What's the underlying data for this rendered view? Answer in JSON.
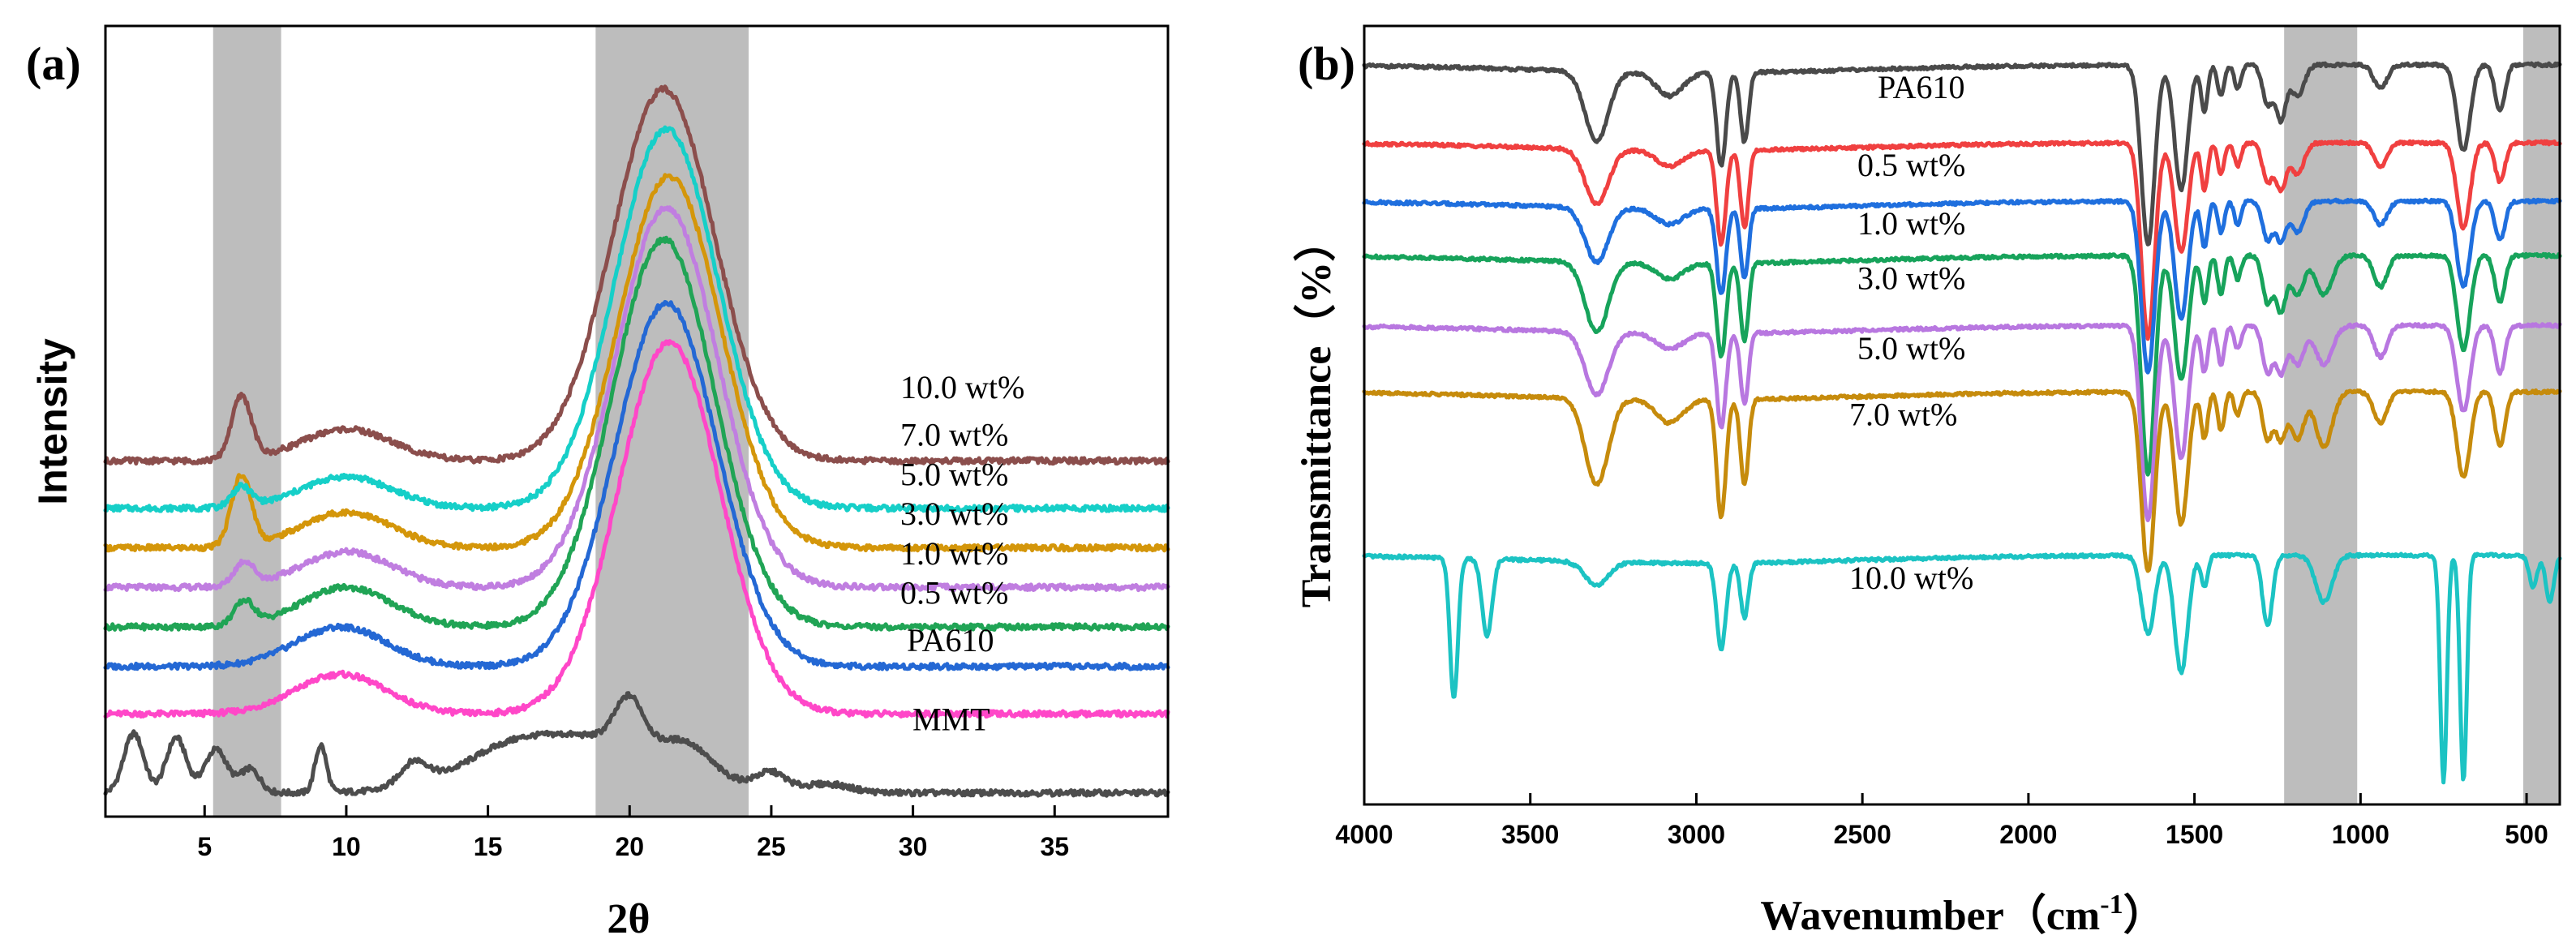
{
  "chart_data": [
    {
      "panel": "(a)",
      "type": "line",
      "title": "",
      "xlabel": "2θ",
      "ylabel": "Intensity",
      "xlim": [
        1.5,
        39
      ],
      "x_ticks": [
        5,
        10,
        15,
        20,
        25,
        30,
        35
      ],
      "y_ticks": [],
      "shaded_regions": [
        [
          5.3,
          7.7
        ],
        [
          18.8,
          24.2
        ]
      ],
      "series": [
        {
          "name": "MMT",
          "color": "#4d4d4d",
          "baseline": 0.03,
          "peaks": [
            [
              2.5,
              0.075,
              0.35
            ],
            [
              4.0,
              0.07,
              0.35
            ],
            [
              5.4,
              0.055,
              0.4
            ],
            [
              6.6,
              0.03,
              0.35
            ],
            [
              9.1,
              0.06,
              0.2
            ],
            [
              12.4,
              0.03,
              0.5
            ],
            [
              15.5,
              0.02,
              1.5
            ],
            [
              18.5,
              0.07,
              3.0
            ],
            [
              20.0,
              0.06,
              0.5
            ],
            [
              22.0,
              0.03,
              0.8
            ],
            [
              25.0,
              0.02,
              0.5
            ],
            [
              27.0,
              0.01,
              0.8
            ]
          ]
        },
        {
          "name": "PA610",
          "color": "#ff47c8",
          "baseline": 0.13,
          "peaks": [
            [
              9.8,
              0.05,
              1.6
            ],
            [
              21.4,
              0.47,
              1.8
            ]
          ]
        },
        {
          "name": "0.5 wt%",
          "color": "#2468d4",
          "baseline": 0.19,
          "peaks": [
            [
              9.8,
              0.05,
              1.6
            ],
            [
              21.3,
              0.46,
              1.8
            ]
          ]
        },
        {
          "name": "1.0 wt%",
          "color": "#20a455",
          "baseline": 0.24,
          "peaks": [
            [
              6.4,
              0.03,
              0.35
            ],
            [
              10.0,
              0.05,
              1.6
            ],
            [
              21.2,
              0.49,
              1.8
            ]
          ]
        },
        {
          "name": "3.0 wt%",
          "color": "#c07ee0",
          "baseline": 0.29,
          "peaks": [
            [
              6.4,
              0.03,
              0.35
            ],
            [
              10.0,
              0.045,
              1.6
            ],
            [
              21.3,
              0.48,
              1.8
            ]
          ]
        },
        {
          "name": "5.0 wt%",
          "color": "#d4960a",
          "baseline": 0.34,
          "peaks": [
            [
              6.3,
              0.09,
              0.35
            ],
            [
              10.0,
              0.045,
              1.6
            ],
            [
              21.4,
              0.47,
              1.8
            ]
          ]
        },
        {
          "name": "7.0 wt%",
          "color": "#16cfc8",
          "baseline": 0.39,
          "peaks": [
            [
              6.3,
              0.025,
              0.35
            ],
            [
              10.0,
              0.04,
              1.6
            ],
            [
              21.3,
              0.48,
              1.8
            ]
          ]
        },
        {
          "name": "10.0 wt%",
          "color": "#8b4e4c",
          "baseline": 0.45,
          "peaks": [
            [
              6.3,
              0.08,
              0.35
            ],
            [
              10.0,
              0.04,
              1.6
            ],
            [
              21.2,
              0.47,
              1.8
            ]
          ]
        }
      ]
    },
    {
      "panel": "(b)",
      "type": "line",
      "title": "",
      "xlabel": "Wavenumber（cm",
      "xlabel_sup": "-1",
      "xlabel_close": "）",
      "ylabel": "Transmittance（%）",
      "xlim": [
        4000,
        400
      ],
      "x_ticks": [
        4000,
        3500,
        3000,
        2500,
        2000,
        1500,
        1000,
        500
      ],
      "y_ticks": [],
      "shaded_regions": [
        [
          1230,
          1010
        ],
        [
          510,
          400
        ]
      ],
      "series": [
        {
          "name": "PA610",
          "color": "#4a4a4a",
          "offset": 0.95,
          "dips": [
            [
              3300,
              0.09,
              35
            ],
            [
              3080,
              0.03,
              40
            ],
            [
              2925,
              0.12,
              14
            ],
            [
              2855,
              0.09,
              12
            ],
            [
              1640,
              0.23,
              20
            ],
            [
              1540,
              0.16,
              20
            ],
            [
              1470,
              0.06,
              10
            ],
            [
              1420,
              0.04,
              10
            ],
            [
              1370,
              0.03,
              10
            ],
            [
              1280,
              0.05,
              15
            ],
            [
              1240,
              0.07,
              15
            ],
            [
              1190,
              0.04,
              20
            ],
            [
              940,
              0.03,
              20
            ],
            [
              690,
              0.11,
              20
            ],
            [
              580,
              0.06,
              15
            ]
          ]
        },
        {
          "name": "0.5 wt%",
          "color": "#f04040",
          "offset": 0.85,
          "dips": [
            [
              3300,
              0.07,
              35
            ],
            [
              3080,
              0.02,
              40
            ],
            [
              2925,
              0.12,
              14
            ],
            [
              2855,
              0.1,
              12
            ],
            [
              1640,
              0.25,
              20
            ],
            [
              1540,
              0.14,
              20
            ],
            [
              1470,
              0.06,
              10
            ],
            [
              1420,
              0.04,
              10
            ],
            [
              1370,
              0.03,
              10
            ],
            [
              1280,
              0.05,
              15
            ],
            [
              1240,
              0.06,
              15
            ],
            [
              1190,
              0.04,
              20
            ],
            [
              940,
              0.03,
              20
            ],
            [
              690,
              0.11,
              20
            ],
            [
              580,
              0.05,
              15
            ]
          ]
        },
        {
          "name": "1.0 wt%",
          "color": "#1f6fde",
          "offset": 0.775,
          "dips": [
            [
              3300,
              0.07,
              35
            ],
            [
              3080,
              0.02,
              40
            ],
            [
              2925,
              0.11,
              14
            ],
            [
              2855,
              0.09,
              12
            ],
            [
              1640,
              0.22,
              20
            ],
            [
              1540,
              0.15,
              20
            ],
            [
              1470,
              0.06,
              10
            ],
            [
              1420,
              0.04,
              10
            ],
            [
              1370,
              0.03,
              10
            ],
            [
              1280,
              0.05,
              15
            ],
            [
              1240,
              0.05,
              15
            ],
            [
              1190,
              0.04,
              20
            ],
            [
              940,
              0.03,
              20
            ],
            [
              690,
              0.11,
              20
            ],
            [
              580,
              0.05,
              15
            ]
          ]
        },
        {
          "name": "3.0 wt%",
          "color": "#17a35b",
          "offset": 0.705,
          "dips": [
            [
              3300,
              0.09,
              35
            ],
            [
              3080,
              0.02,
              40
            ],
            [
              2925,
              0.12,
              14
            ],
            [
              2855,
              0.1,
              12
            ],
            [
              1640,
              0.28,
              20
            ],
            [
              1540,
              0.16,
              20
            ],
            [
              1470,
              0.06,
              10
            ],
            [
              1420,
              0.05,
              10
            ],
            [
              1370,
              0.03,
              10
            ],
            [
              1280,
              0.06,
              15
            ],
            [
              1240,
              0.07,
              15
            ],
            [
              1190,
              0.05,
              20
            ],
            [
              1110,
              0.05,
              25
            ],
            [
              940,
              0.04,
              20
            ],
            [
              690,
              0.12,
              20
            ],
            [
              580,
              0.06,
              15
            ]
          ]
        },
        {
          "name": "5.0 wt%",
          "color": "#b877e0",
          "offset": 0.615,
          "dips": [
            [
              3300,
              0.08,
              35
            ],
            [
              3080,
              0.02,
              40
            ],
            [
              2925,
              0.12,
              14
            ],
            [
              2855,
              0.09,
              12
            ],
            [
              1640,
              0.25,
              20
            ],
            [
              1540,
              0.17,
              20
            ],
            [
              1470,
              0.06,
              10
            ],
            [
              1420,
              0.05,
              10
            ],
            [
              1370,
              0.03,
              10
            ],
            [
              1280,
              0.06,
              15
            ],
            [
              1240,
              0.06,
              15
            ],
            [
              1190,
              0.05,
              20
            ],
            [
              1110,
              0.05,
              25
            ],
            [
              940,
              0.04,
              20
            ],
            [
              690,
              0.11,
              20
            ],
            [
              580,
              0.06,
              15
            ]
          ]
        },
        {
          "name": "7.0 wt%",
          "color": "#c68b0c",
          "offset": 0.53,
          "dips": [
            [
              3300,
              0.11,
              35
            ],
            [
              3080,
              0.03,
              40
            ],
            [
              2925,
              0.15,
              14
            ],
            [
              2855,
              0.11,
              12
            ],
            [
              1640,
              0.23,
              20
            ],
            [
              1540,
              0.17,
              20
            ],
            [
              1470,
              0.06,
              10
            ],
            [
              1420,
              0.05,
              10
            ],
            [
              1370,
              0.03,
              10
            ],
            [
              1280,
              0.06,
              15
            ],
            [
              1240,
              0.06,
              15
            ],
            [
              1190,
              0.06,
              20
            ],
            [
              1110,
              0.07,
              25
            ],
            [
              940,
              0.04,
              20
            ],
            [
              690,
              0.11,
              20
            ],
            [
              580,
              0.07,
              15
            ]
          ]
        },
        {
          "name": "10.0 wt%",
          "color": "#1cc3c3",
          "offset": 0.32,
          "dips": [
            [
              3730,
              0.18,
              12
            ],
            [
              3630,
              0.1,
              15
            ],
            [
              3300,
              0.03,
              35
            ],
            [
              2925,
              0.11,
              14
            ],
            [
              2855,
              0.07,
              12
            ],
            [
              1640,
              0.1,
              20
            ],
            [
              1540,
              0.15,
              20
            ],
            [
              1470,
              0.04,
              10
            ],
            [
              1280,
              0.09,
              15
            ],
            [
              1110,
              0.06,
              25
            ],
            [
              750,
              0.29,
              10
            ],
            [
              690,
              0.29,
              10
            ],
            [
              480,
              0.04,
              12
            ],
            [
              430,
              0.06,
              12
            ]
          ]
        }
      ]
    }
  ]
}
